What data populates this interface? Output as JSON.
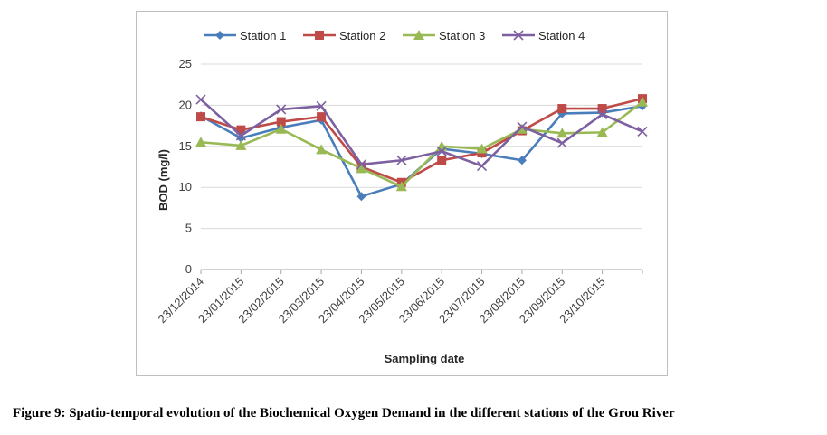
{
  "figure": {
    "caption": "Figure 9: Spatio-temporal evolution of the Biochemical Oxygen Demand in the different stations of the Grou River"
  },
  "chart_data": {
    "type": "line",
    "title": "",
    "xlabel": "Sampling date",
    "ylabel": "BOD (mg/l)",
    "ylim": [
      0,
      25
    ],
    "yticks": [
      0,
      5,
      10,
      15,
      20,
      25
    ],
    "grid": "horizontal",
    "legend_position": "top",
    "x": [
      "23/12/2014",
      "23/01/2015",
      "23/02/2015",
      "23/03/2015",
      "23/04/2015",
      "23/05/2015",
      "23/06/2015",
      "23/07/2015",
      "23/08/2015",
      "23/09/2015",
      "23/10/2015",
      ""
    ],
    "series": [
      {
        "name": "Station 1",
        "color": "#4a7ebb",
        "marker": "diamond",
        "values": [
          18.7,
          16.0,
          17.3,
          18.2,
          8.9,
          10.4,
          14.7,
          14.1,
          13.3,
          19.0,
          19.1,
          19.9
        ]
      },
      {
        "name": "Station 2",
        "color": "#be4b48",
        "marker": "square",
        "values": [
          18.6,
          17.0,
          18.0,
          18.6,
          12.5,
          10.6,
          13.3,
          14.2,
          16.9,
          19.6,
          19.6,
          20.8
        ]
      },
      {
        "name": "Station 3",
        "color": "#98b954",
        "marker": "triangle",
        "values": [
          15.5,
          15.1,
          17.1,
          14.6,
          12.3,
          10.1,
          15.0,
          14.7,
          17.1,
          16.6,
          16.7,
          20.4
        ]
      },
      {
        "name": "Station 4",
        "color": "#7d60a0",
        "marker": "x",
        "values": [
          20.7,
          16.3,
          19.5,
          19.9,
          12.8,
          13.3,
          14.4,
          12.6,
          17.4,
          15.4,
          18.9,
          16.8
        ]
      }
    ]
  }
}
